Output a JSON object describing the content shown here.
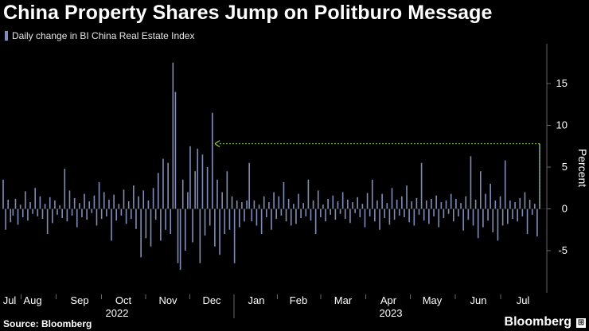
{
  "title": "China Property Shares Jump on Politburo Message",
  "legend_label": "Daily change in BI China Real Estate Index",
  "source": "Source: Bloomberg",
  "brand": "Bloomberg",
  "colors": {
    "bar": "#7f8db8",
    "arrow": "#8ccf3f",
    "axis": "#666666",
    "text": "#ffffff",
    "background": "#000000"
  },
  "chart_data": {
    "type": "bar",
    "ylabel": "Percent",
    "xlabel": "",
    "ylim": [
      -9,
      20
    ],
    "yticks": [
      -5,
      0,
      5,
      10,
      15
    ],
    "months": [
      "Jul",
      "Aug",
      "Sep",
      "Oct",
      "Nov",
      "Dec",
      "Jan",
      "Feb",
      "Mar",
      "Apr",
      "May",
      "Jun",
      "Jul"
    ],
    "years": [
      "2022",
      "2023"
    ],
    "annotation": "Arrow from the latest bar back to the comparable earlier level (~8%)",
    "series": [
      {
        "values": [
          3.5,
          -2.5,
          1.1,
          -1.6,
          -0.8,
          1.2,
          -1.9,
          0.5,
          -1.0,
          2.1,
          -1.4,
          0.8,
          -0.6,
          2.5,
          -0.9,
          1.5,
          -1.2,
          0.6,
          -3.0,
          1.4,
          -1.7,
          1.0,
          -0.7,
          0.4,
          -1.1,
          4.8,
          -1.5,
          2.2,
          -0.8,
          1.3,
          -2.2,
          0.7,
          -1.0,
          1.8,
          -1.3,
          0.9,
          -0.5,
          1.6,
          -2.0,
          3.2,
          -1.2,
          2.0,
          -0.9,
          1.1,
          -3.8,
          1.7,
          -1.4,
          0.6,
          -0.8,
          2.3,
          -1.8,
          0.9,
          -1.2,
          2.8,
          -2.4,
          1.5,
          -5.8,
          2.2,
          -3.5,
          1.0,
          -4.5,
          2.5,
          -1.3,
          4.3,
          -3.8,
          6.0,
          -2.5,
          5.5,
          -3.0,
          17.5,
          14.0,
          -6.5,
          -7.3,
          3.5,
          -5.0,
          2.0,
          7.5,
          -4.0,
          4.5,
          7.2,
          -6.5,
          6.5,
          -3.2,
          5.0,
          -2.0,
          11.5,
          -4.5,
          3.5,
          -5.5,
          2.0,
          -3.0,
          4.5,
          -2.5,
          1.5,
          -6.5,
          1.0,
          -2.2,
          0.8,
          -1.5,
          1.0,
          5.5,
          -1.5,
          1.0,
          -2.0,
          0.5,
          -3.0,
          1.5,
          -1.0,
          0.8,
          -2.5,
          2.0,
          -1.2,
          1.5,
          -0.8,
          3.2,
          -1.5,
          1.2,
          -2.0,
          0.6,
          -1.8,
          1.8,
          -1.1,
          0.7,
          -0.9,
          3.5,
          -1.4,
          1.0,
          -3.0,
          2.2,
          -1.0,
          0.5,
          -1.5,
          1.2,
          -0.7,
          1.6,
          -1.3,
          0.9,
          -0.6,
          2.0,
          -1.2,
          1.1,
          -1.7,
          0.8,
          -0.5,
          1.4,
          -1.0,
          0.6,
          -2.2,
          1.9,
          -0.9,
          3.5,
          -1.5,
          1.0,
          -2.5,
          1.8,
          -1.1,
          0.7,
          -1.9,
          2.5,
          -1.3,
          1.1,
          -0.8,
          1.5,
          -1.0,
          2.8,
          -1.6,
          0.9,
          -2.0,
          1.3,
          -0.7,
          5.5,
          -1.4,
          1.0,
          -1.8,
          1.2,
          -0.9,
          1.6,
          -2.2,
          0.8,
          -1.1,
          1.0,
          -0.6,
          1.8,
          -1.5,
          1.2,
          -0.9,
          0.7,
          -2.6,
          1.5,
          -1.3,
          6.3,
          -2.0,
          1.1,
          -3.5,
          4.5,
          -2.2,
          1.8,
          -1.4,
          3.0,
          -2.8,
          1.0,
          -3.8,
          1.5,
          -2.0,
          5.8,
          -1.8,
          1.0,
          -1.2,
          0.8,
          -1.5,
          1.3,
          -0.9,
          2.0,
          -3.0,
          1.1,
          -0.7,
          0.6,
          -3.3,
          7.8
        ]
      }
    ]
  }
}
